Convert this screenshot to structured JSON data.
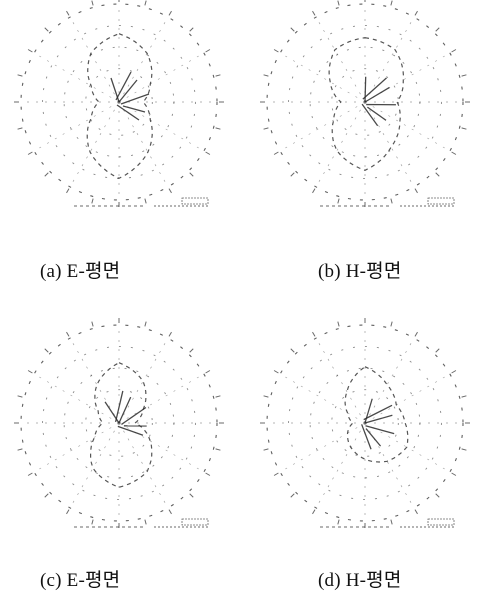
{
  "chart_data": [
    {
      "type": "polar",
      "caption": "(a) E-평면",
      "grid": true,
      "angles_deg": [
        0,
        30,
        60,
        90,
        120,
        150,
        180,
        210,
        240,
        270,
        300,
        330
      ],
      "pattern": [
        0.85,
        0.7,
        0.45,
        0.3,
        0.45,
        0.72,
        0.95,
        0.72,
        0.4,
        0.25,
        0.4,
        0.7
      ],
      "title": "",
      "xlabel": "",
      "ylabel": ""
    },
    {
      "type": "polar",
      "caption": "(b) H-평면",
      "grid": true,
      "angles_deg": [
        0,
        30,
        60,
        90,
        120,
        150,
        180,
        210,
        240,
        270,
        300,
        330
      ],
      "pattern": [
        0.8,
        0.75,
        0.55,
        0.4,
        0.5,
        0.65,
        0.85,
        0.7,
        0.45,
        0.3,
        0.5,
        0.75
      ],
      "title": "",
      "xlabel": "",
      "ylabel": ""
    },
    {
      "type": "polar",
      "caption": "(c) E-평면",
      "grid": true,
      "angles_deg": [
        0,
        30,
        60,
        90,
        120,
        150,
        180,
        210,
        240,
        270,
        300,
        330
      ],
      "pattern": [
        0.75,
        0.6,
        0.35,
        0.2,
        0.45,
        0.7,
        0.8,
        0.65,
        0.35,
        0.2,
        0.3,
        0.55
      ],
      "title": "",
      "xlabel": "",
      "ylabel": ""
    },
    {
      "type": "polar",
      "caption": "(d) H-평면",
      "grid": true,
      "angles_deg": [
        0,
        30,
        60,
        90,
        120,
        150,
        180,
        210,
        240,
        270,
        300,
        330
      ],
      "pattern": [
        0.7,
        0.55,
        0.45,
        0.5,
        0.6,
        0.55,
        0.45,
        0.35,
        0.25,
        0.15,
        0.25,
        0.45
      ],
      "title": "",
      "xlabel": "",
      "ylabel": ""
    }
  ],
  "colors": {
    "ink": "#2a2a2a",
    "background": "#ffffff"
  }
}
